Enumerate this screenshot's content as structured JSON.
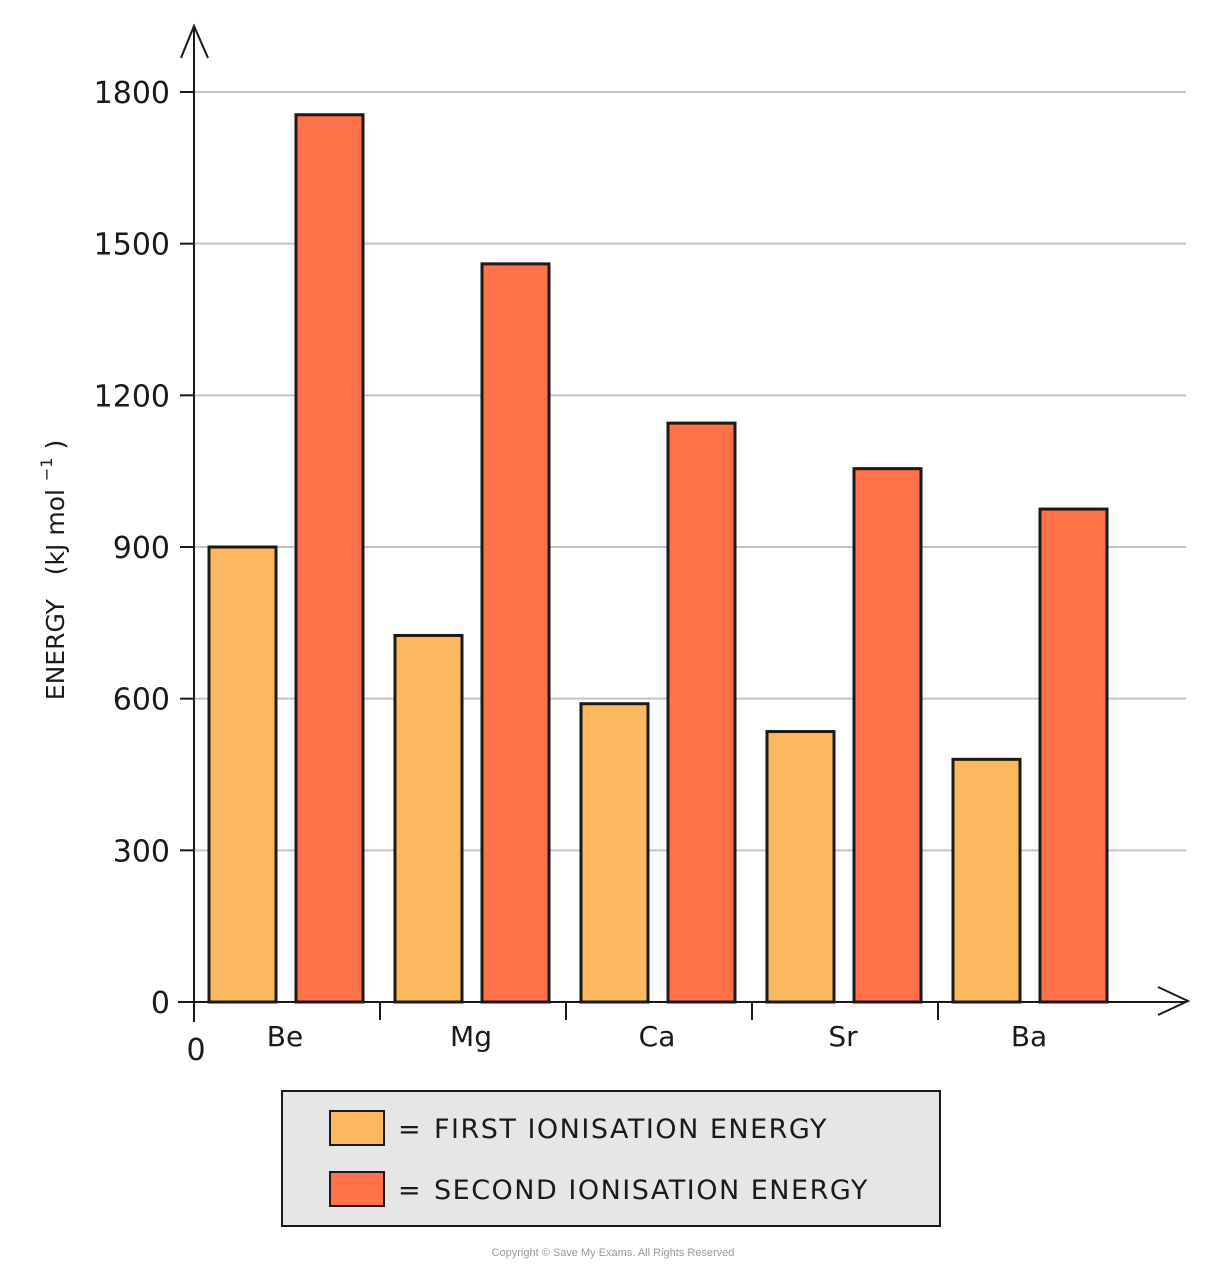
{
  "chart_data": {
    "type": "bar",
    "title": "",
    "xlabel": "",
    "ylabel": "ENERGY (kJ mol⁻¹)",
    "ylabel_main": "ENERGY",
    "ylabel_unit_open": "(kJ mol",
    "ylabel_unit_sup": "−1",
    "ylabel_unit_close": ")",
    "origin_label": "0",
    "categories": [
      "Be",
      "Mg",
      "Ca",
      "Sr",
      "Ba"
    ],
    "series": [
      {
        "name": "FIRST IONISATION ENERGY",
        "color": "#FDB85F",
        "values": [
          900,
          725,
          590,
          535,
          480
        ]
      },
      {
        "name": "SECOND IONISATION ENERGY",
        "color": "#FF7148",
        "values": [
          1755,
          1460,
          1145,
          1055,
          975
        ]
      }
    ],
    "yticks": [
      0,
      300,
      600,
      900,
      1200,
      1500,
      1800
    ],
    "ylim": [
      0,
      1800
    ],
    "grid": true,
    "legend_position": "bottom",
    "legend_prefix": "=",
    "legend_box_color": "#e6e6e6"
  },
  "copyright": "Copyright © Save My Exams. All Rights Reserved"
}
